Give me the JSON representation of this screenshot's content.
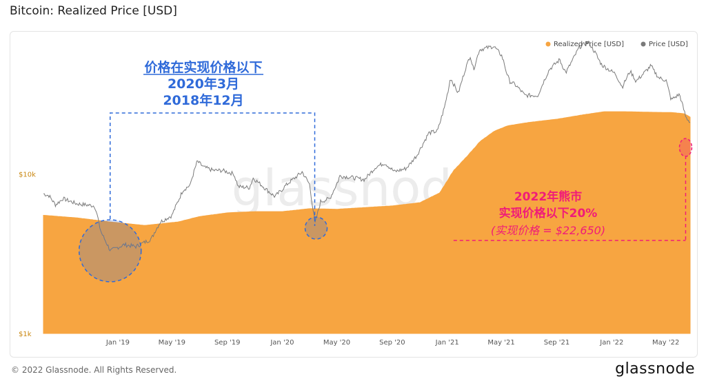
{
  "title": "Bitcoin: Realized Price [USD]",
  "footer": {
    "copyright": "© 2022 Glassnode. All Rights Reserved.",
    "logo": "glassnode"
  },
  "watermark": "glassnode",
  "colors": {
    "realized": "#f7a541",
    "price": "#7a7a7a",
    "blue": "#2f6ad9",
    "pink": "#f01c78",
    "axis": "#c9860e"
  },
  "chart_data": {
    "type": "area",
    "title": "Bitcoin: Realized Price [USD]",
    "y_scale": "log",
    "ylim": [
      1000,
      60000
    ],
    "y_ticks": [
      {
        "value": 10000,
        "label": "$10k"
      },
      {
        "value": 1000,
        "label": "$1k"
      }
    ],
    "x_range": [
      "2018-07-20",
      "2022-06-24"
    ],
    "x_ticks": [
      {
        "date": "2019-01-01",
        "label": "Jan '19"
      },
      {
        "date": "2019-05-01",
        "label": "May '19"
      },
      {
        "date": "2019-09-01",
        "label": "Sep '19"
      },
      {
        "date": "2020-01-01",
        "label": "Jan '20"
      },
      {
        "date": "2020-05-01",
        "label": "May '20"
      },
      {
        "date": "2020-09-01",
        "label": "Sep '20"
      },
      {
        "date": "2021-01-01",
        "label": "Jan '21"
      },
      {
        "date": "2021-05-01",
        "label": "May '21"
      },
      {
        "date": "2021-09-01",
        "label": "Sep '21"
      },
      {
        "date": "2022-01-01",
        "label": "Jan '22"
      },
      {
        "date": "2022-05-01",
        "label": "May '22"
      }
    ],
    "legend_position": "top-right",
    "series": [
      {
        "name": "Realized Price [USD]",
        "kind": "area",
        "x": [
          "2018-07-20",
          "2018-10-01",
          "2018-12-15",
          "2019-03-01",
          "2019-05-15",
          "2019-07-01",
          "2019-09-01",
          "2019-11-01",
          "2020-01-01",
          "2020-03-01",
          "2020-05-01",
          "2020-07-01",
          "2020-09-01",
          "2020-11-01",
          "2020-12-15",
          "2021-01-15",
          "2021-02-15",
          "2021-03-15",
          "2021-04-15",
          "2021-05-15",
          "2021-07-01",
          "2021-09-01",
          "2021-11-01",
          "2021-12-15",
          "2022-02-01",
          "2022-04-01",
          "2022-05-15",
          "2022-06-10",
          "2022-06-24"
        ],
        "values": [
          5500,
          5300,
          5000,
          4750,
          5000,
          5400,
          5700,
          5800,
          5800,
          6050,
          6000,
          6150,
          6300,
          6600,
          7600,
          10500,
          13000,
          16000,
          18500,
          20000,
          21000,
          22000,
          23500,
          24500,
          24500,
          24300,
          24200,
          23800,
          22650
        ]
      },
      {
        "name": "Price [USD]",
        "kind": "line",
        "x": [
          "2018-07-20",
          "2018-08-01",
          "2018-08-15",
          "2018-09-01",
          "2018-10-01",
          "2018-11-10",
          "2018-11-25",
          "2018-12-15",
          "2019-01-15",
          "2019-02-10",
          "2019-03-15",
          "2019-04-05",
          "2019-05-01",
          "2019-05-25",
          "2019-06-10",
          "2019-06-26",
          "2019-07-10",
          "2019-08-01",
          "2019-08-20",
          "2019-09-15",
          "2019-09-25",
          "2019-10-20",
          "2019-10-28",
          "2019-11-15",
          "2019-12-15",
          "2020-01-15",
          "2020-02-14",
          "2020-03-01",
          "2020-03-13",
          "2020-03-25",
          "2020-04-15",
          "2020-05-08",
          "2020-06-01",
          "2020-07-01",
          "2020-07-25",
          "2020-08-15",
          "2020-09-05",
          "2020-10-01",
          "2020-10-25",
          "2020-11-20",
          "2020-12-10",
          "2020-12-25",
          "2021-01-08",
          "2021-01-25",
          "2021-02-10",
          "2021-02-21",
          "2021-02-28",
          "2021-03-13",
          "2021-04-14",
          "2021-05-01",
          "2021-05-19",
          "2021-06-01",
          "2021-06-22",
          "2021-07-20",
          "2021-08-15",
          "2021-09-07",
          "2021-09-21",
          "2021-10-20",
          "2021-11-10",
          "2021-11-25",
          "2021-12-10",
          "2022-01-10",
          "2022-01-24",
          "2022-02-10",
          "2022-02-24",
          "2022-03-28",
          "2022-04-15",
          "2022-05-01",
          "2022-05-12",
          "2022-05-31",
          "2022-06-14",
          "2022-06-24"
        ],
        "values": [
          7500,
          7300,
          6400,
          7000,
          6500,
          6300,
          4300,
          3300,
          3600,
          3500,
          3900,
          5000,
          5500,
          7900,
          8500,
          12000,
          11000,
          10500,
          10500,
          10000,
          8300,
          8200,
          9400,
          8500,
          7200,
          8800,
          10300,
          8600,
          4900,
          6700,
          7000,
          9700,
          9500,
          9200,
          11000,
          11700,
          10300,
          10800,
          13000,
          18000,
          18500,
          26000,
          40000,
          32000,
          46000,
          55000,
          45000,
          60000,
          63000,
          55000,
          38000,
          36000,
          31000,
          31000,
          45000,
          52000,
          43000,
          62000,
          67000,
          57000,
          48000,
          42000,
          35000,
          44000,
          38000,
          47500,
          40000,
          38500,
          29000,
          31500,
          22500,
          21000
        ]
      }
    ],
    "annotations": {
      "blue_block": [
        "价格在实现价格以下",
        "2020年3月",
        "2018年12月"
      ],
      "pink_block": [
        "2022年熊市",
        "实现价格以下20%",
        "(实现价格 = $22,650)"
      ],
      "pink_level": 22650
    }
  }
}
